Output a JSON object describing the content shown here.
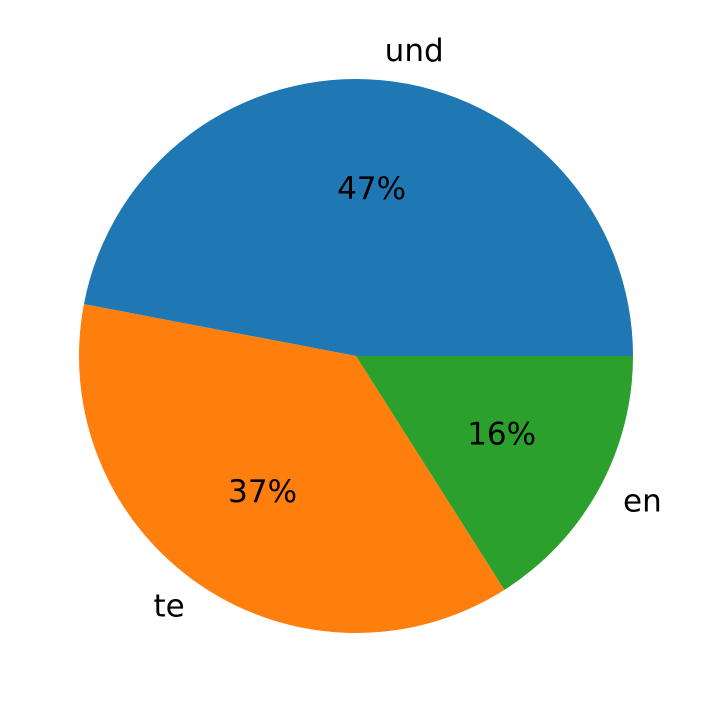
{
  "chart_data": {
    "type": "pie",
    "categories": [
      "und",
      "te",
      "en"
    ],
    "values": [
      47,
      37,
      16
    ],
    "value_labels": [
      "47%",
      "37%",
      "16%"
    ],
    "colors": [
      "#1f77b4",
      "#ff7f0e",
      "#2ca02c"
    ]
  }
}
